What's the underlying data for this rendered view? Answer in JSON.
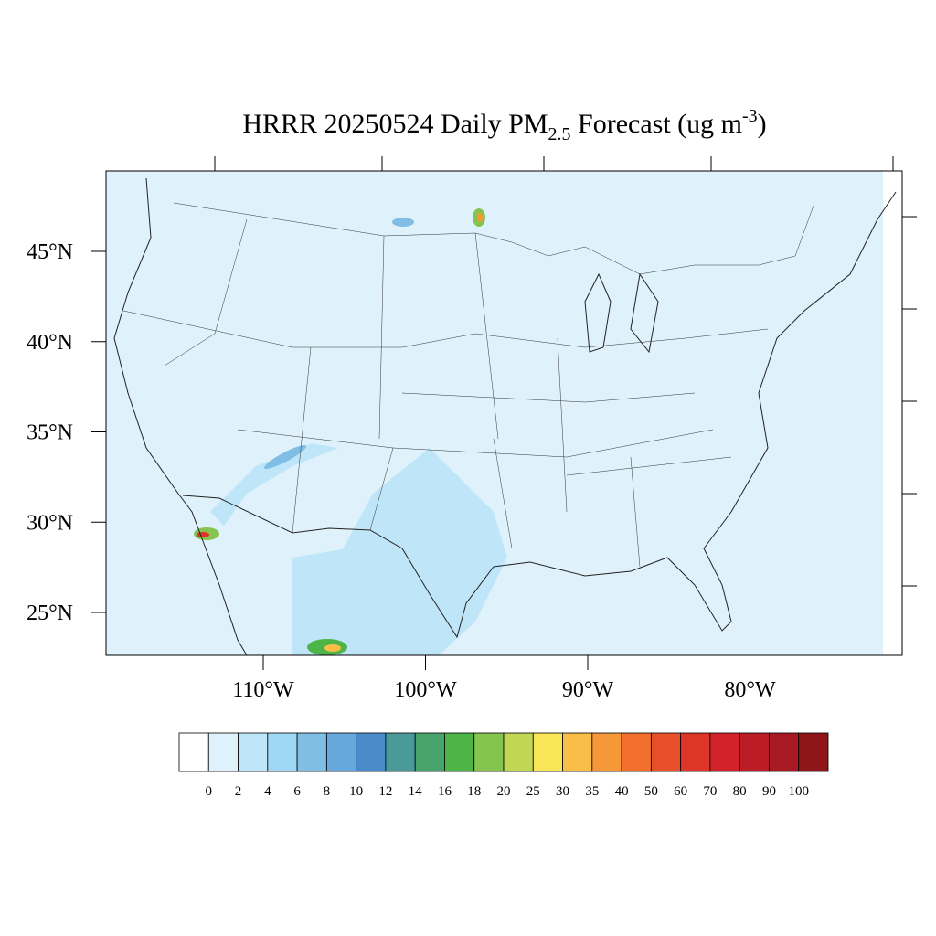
{
  "map": {
    "title": {
      "main": "HRRR 20250524 Daily PM",
      "subscript": "2.5",
      "middle": " Forecast (ug m",
      "superscript": "-3",
      "end": ")"
    },
    "lat_ticks": [
      {
        "value": 45,
        "label": "45°N"
      },
      {
        "value": 40,
        "label": "40°N"
      },
      {
        "value": 35,
        "label": "35°N"
      },
      {
        "value": 30,
        "label": "30°N"
      },
      {
        "value": 25,
        "label": "25°N"
      }
    ],
    "lon_ticks": [
      {
        "value": -110,
        "label": "110°W"
      },
      {
        "value": -100,
        "label": "100°W"
      },
      {
        "value": -90,
        "label": "90°W"
      },
      {
        "value": -80,
        "label": "80°W"
      }
    ],
    "colorbar": {
      "levels": [
        0,
        2,
        4,
        6,
        8,
        10,
        12,
        14,
        16,
        18,
        20,
        25,
        30,
        35,
        40,
        50,
        60,
        70,
        80,
        90,
        100
      ],
      "colors": [
        "#ffffff",
        "#dff1fb",
        "#bfe6f8",
        "#9fd8f5",
        "#80bee6",
        "#66a8dc",
        "#4a8ccb",
        "#4a9a9a",
        "#48a46a",
        "#4db447",
        "#85c44f",
        "#c2d655",
        "#f8e658",
        "#f8be48",
        "#f79838",
        "#f2702c",
        "#e8502c",
        "#dd3527",
        "#d4222a",
        "#bc1c26",
        "#a81a22",
        "#8e1518"
      ]
    }
  }
}
